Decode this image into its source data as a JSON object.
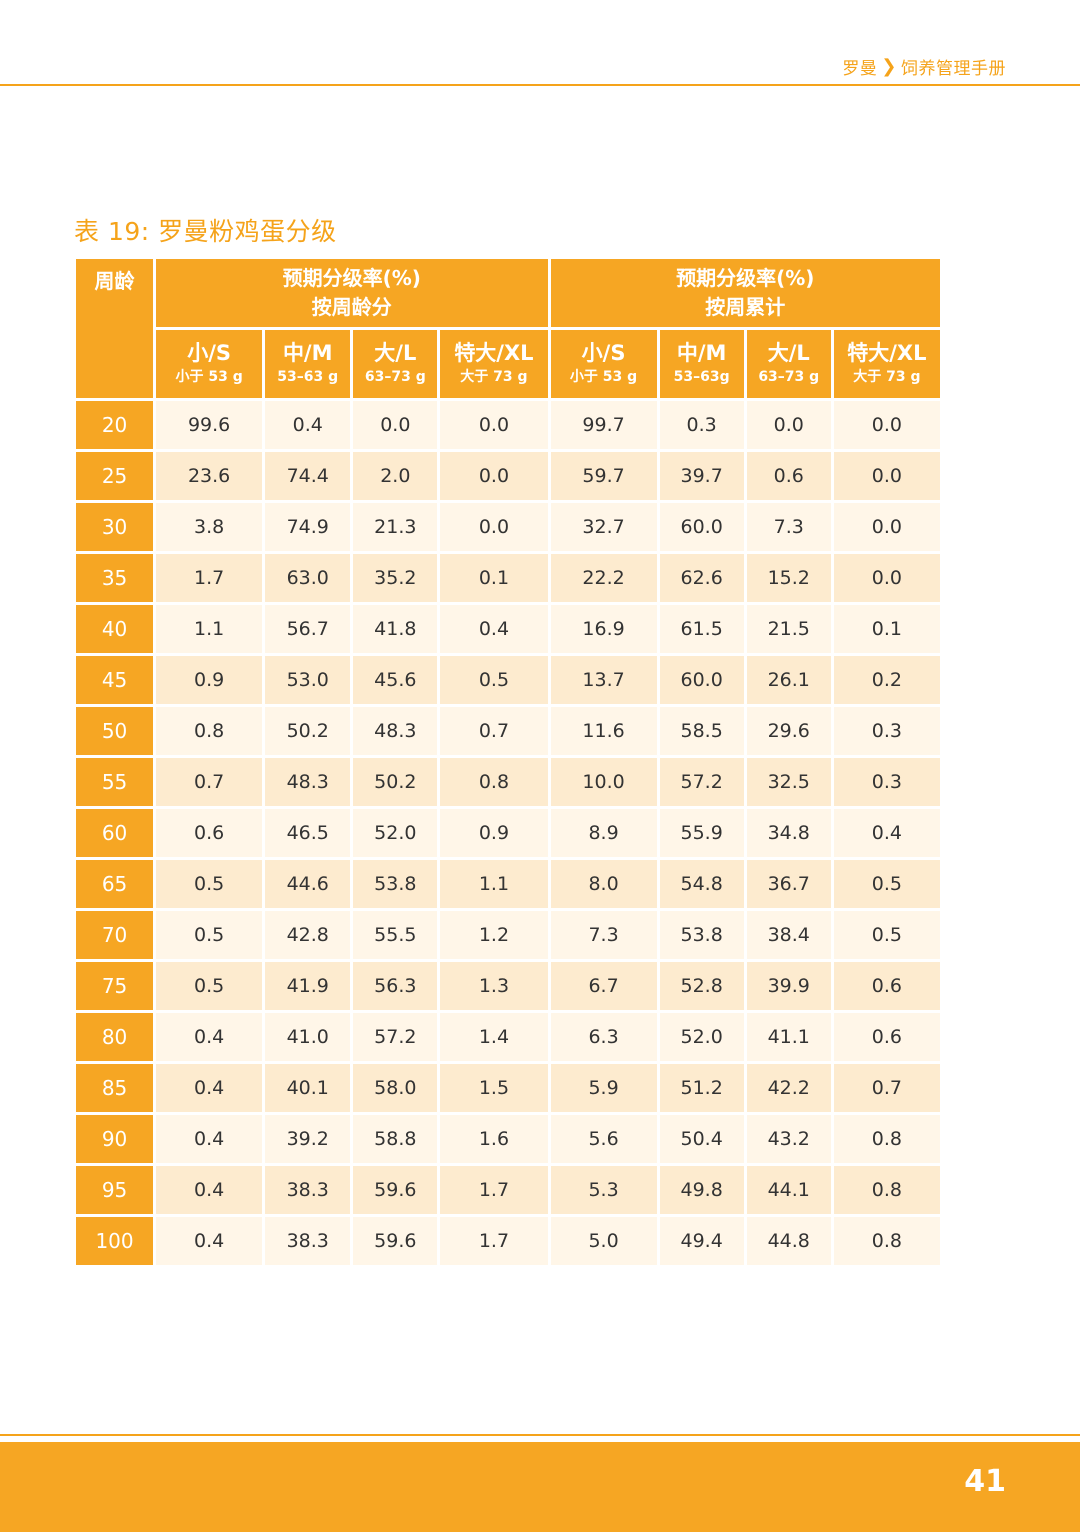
{
  "header": {
    "brand": "罗曼",
    "chevron_icon": "chevron-right-icon",
    "section": "饲养管理手册"
  },
  "title": "表 19: 罗曼粉鸡蛋分级",
  "table": {
    "age_header": "周龄",
    "group1": {
      "line1": "预期分级率(%)",
      "line2": "按周龄分"
    },
    "group2": {
      "line1": "预期分级率(%)",
      "line2": "按周累计"
    },
    "sizes": [
      {
        "label": "小/S",
        "range": "小于 53 g"
      },
      {
        "label": "中/M",
        "range": "53–63 g"
      },
      {
        "label": "大/L",
        "range": "63–73 g"
      },
      {
        "label": "特大/XL",
        "range": "大于 73 g"
      },
      {
        "label": "小/S",
        "range": "小于 53 g"
      },
      {
        "label": "中/M",
        "range": "53–63g"
      },
      {
        "label": "大/L",
        "range": "63–73 g"
      },
      {
        "label": "特大/XL",
        "range": "大于 73 g"
      }
    ],
    "rows": [
      {
        "age": "20",
        "values": [
          "99.6",
          "0.4",
          "0.0",
          "0.0",
          "99.7",
          "0.3",
          "0.0",
          "0.0"
        ]
      },
      {
        "age": "25",
        "values": [
          "23.6",
          "74.4",
          "2.0",
          "0.0",
          "59.7",
          "39.7",
          "0.6",
          "0.0"
        ]
      },
      {
        "age": "30",
        "values": [
          "3.8",
          "74.9",
          "21.3",
          "0.0",
          "32.7",
          "60.0",
          "7.3",
          "0.0"
        ]
      },
      {
        "age": "35",
        "values": [
          "1.7",
          "63.0",
          "35.2",
          "0.1",
          "22.2",
          "62.6",
          "15.2",
          "0.0"
        ]
      },
      {
        "age": "40",
        "values": [
          "1.1",
          "56.7",
          "41.8",
          "0.4",
          "16.9",
          "61.5",
          "21.5",
          "0.1"
        ]
      },
      {
        "age": "45",
        "values": [
          "0.9",
          "53.0",
          "45.6",
          "0.5",
          "13.7",
          "60.0",
          "26.1",
          "0.2"
        ]
      },
      {
        "age": "50",
        "values": [
          "0.8",
          "50.2",
          "48.3",
          "0.7",
          "11.6",
          "58.5",
          "29.6",
          "0.3"
        ]
      },
      {
        "age": "55",
        "values": [
          "0.7",
          "48.3",
          "50.2",
          "0.8",
          "10.0",
          "57.2",
          "32.5",
          "0.3"
        ]
      },
      {
        "age": "60",
        "values": [
          "0.6",
          "46.5",
          "52.0",
          "0.9",
          "8.9",
          "55.9",
          "34.8",
          "0.4"
        ]
      },
      {
        "age": "65",
        "values": [
          "0.5",
          "44.6",
          "53.8",
          "1.1",
          "8.0",
          "54.8",
          "36.7",
          "0.5"
        ]
      },
      {
        "age": "70",
        "values": [
          "0.5",
          "42.8",
          "55.5",
          "1.2",
          "7.3",
          "53.8",
          "38.4",
          "0.5"
        ]
      },
      {
        "age": "75",
        "values": [
          "0.5",
          "41.9",
          "56.3",
          "1.3",
          "6.7",
          "52.8",
          "39.9",
          "0.6"
        ]
      },
      {
        "age": "80",
        "values": [
          "0.4",
          "41.0",
          "57.2",
          "1.4",
          "6.3",
          "52.0",
          "41.1",
          "0.6"
        ]
      },
      {
        "age": "85",
        "values": [
          "0.4",
          "40.1",
          "58.0",
          "1.5",
          "5.9",
          "51.2",
          "42.2",
          "0.7"
        ]
      },
      {
        "age": "90",
        "values": [
          "0.4",
          "39.2",
          "58.8",
          "1.6",
          "5.6",
          "50.4",
          "43.2",
          "0.8"
        ]
      },
      {
        "age": "95",
        "values": [
          "0.4",
          "38.3",
          "59.6",
          "1.7",
          "5.3",
          "49.8",
          "44.1",
          "0.8"
        ]
      },
      {
        "age": "100",
        "values": [
          "0.4",
          "38.3",
          "59.6",
          "1.7",
          "5.0",
          "49.4",
          "44.8",
          "0.8"
        ]
      }
    ]
  },
  "footer": {
    "page_number": "41"
  },
  "colors": {
    "accent": "#f6a623",
    "row_light": "#fff6e8",
    "row_dark": "#fdebcf",
    "text": "#333333"
  }
}
